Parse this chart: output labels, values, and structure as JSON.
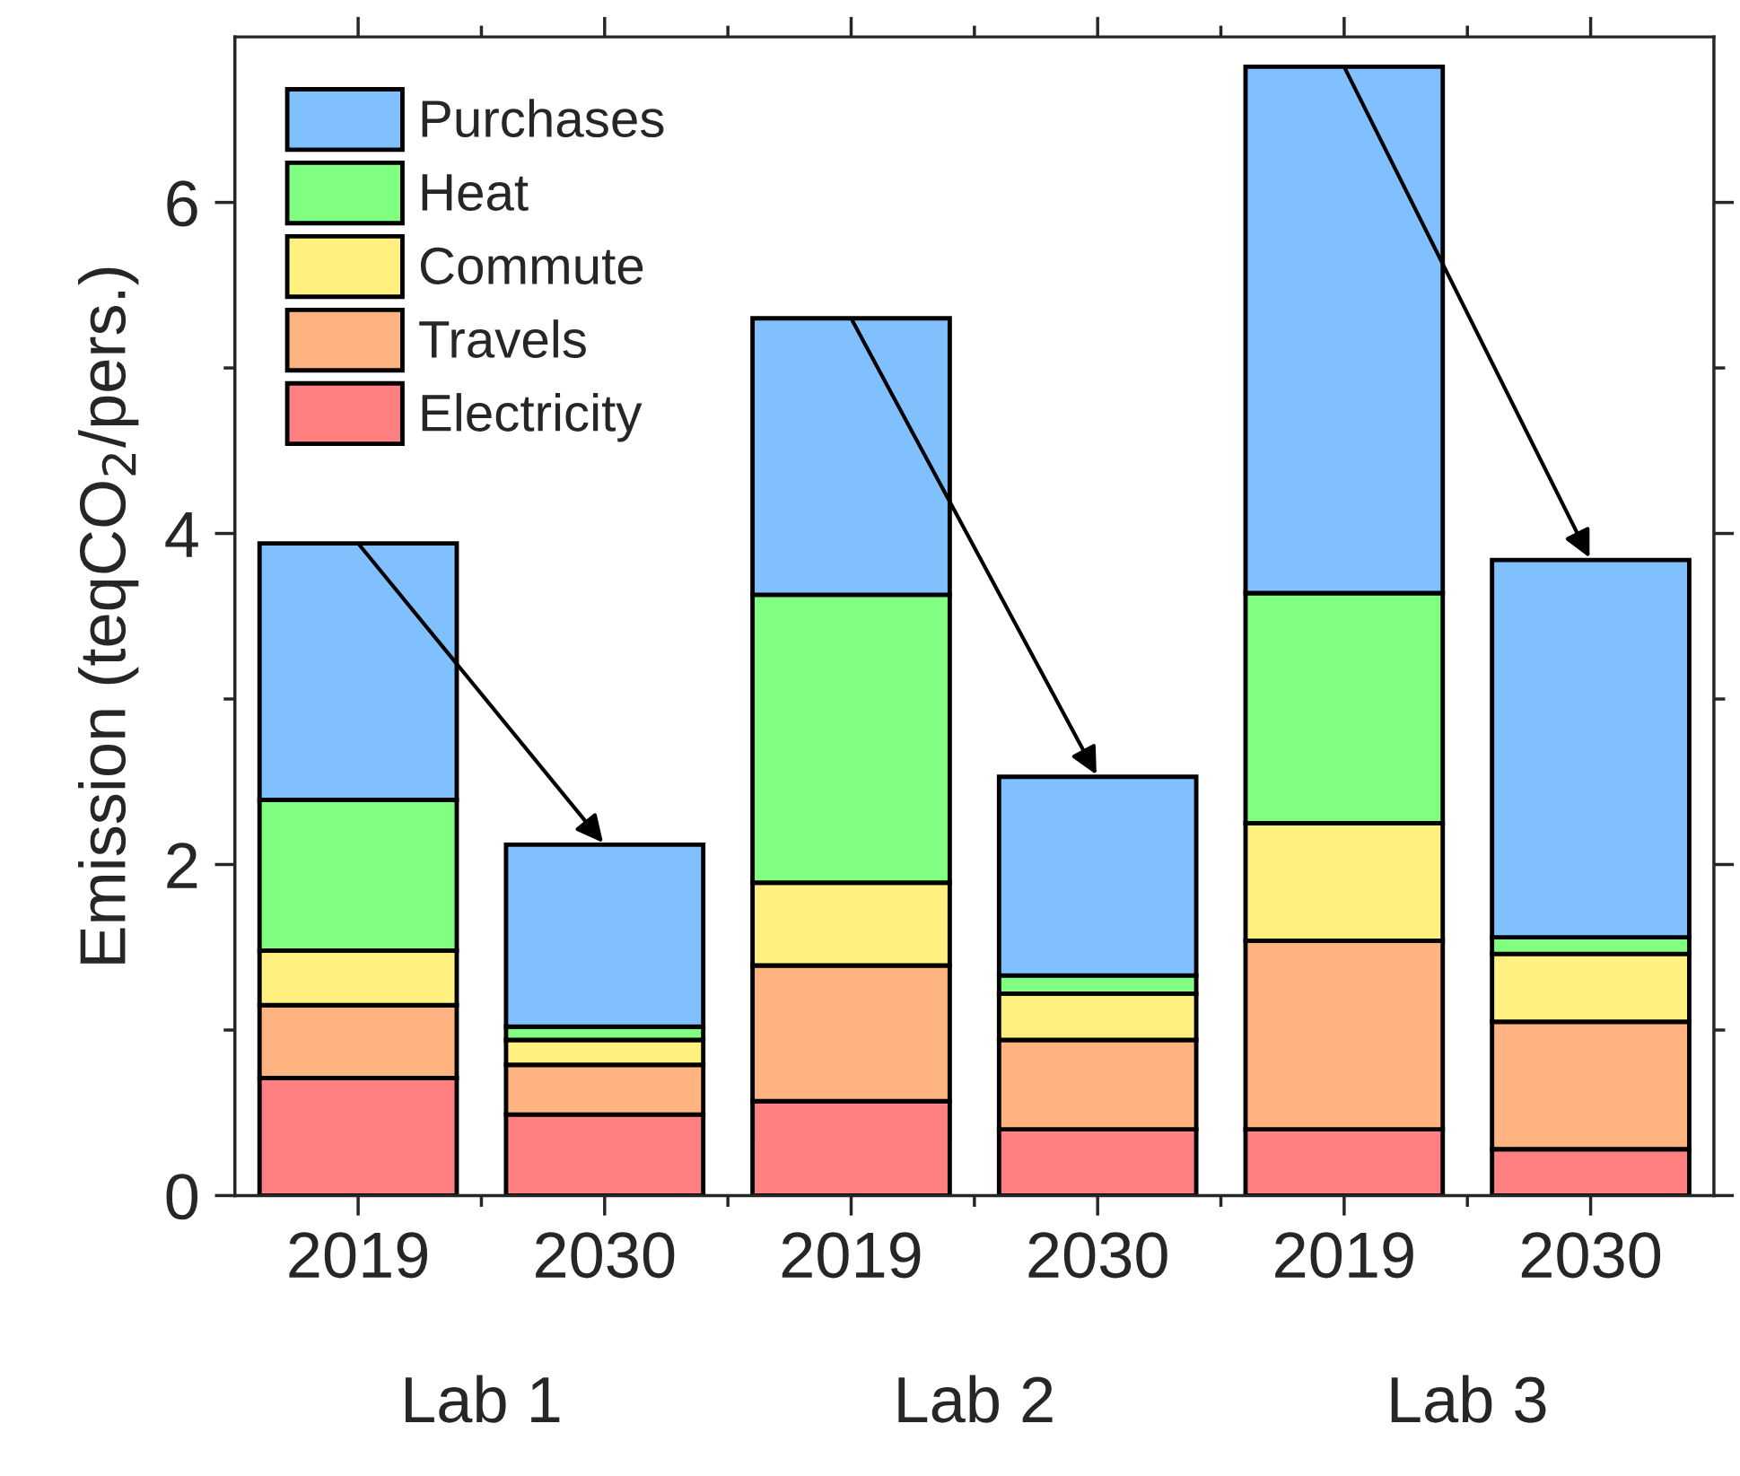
{
  "chart_data": {
    "type": "bar",
    "stacked": true,
    "ylabel": "Emission (teqCO$_{2}$/pers.)",
    "categories": [
      "2019",
      "2030",
      "2019",
      "2030",
      "2019",
      "2030"
    ],
    "series": [
      {
        "name": "Electricity",
        "color": "#ff8080",
        "values": [
          0.71,
          0.49,
          0.57,
          0.4,
          0.4,
          0.28
        ]
      },
      {
        "name": "Travels",
        "color": "#ffb380",
        "values": [
          0.44,
          0.3,
          0.82,
          0.54,
          1.14,
          0.77
        ]
      },
      {
        "name": "Commute",
        "color": "#fff080",
        "values": [
          0.33,
          0.15,
          0.5,
          0.28,
          0.71,
          0.41
        ]
      },
      {
        "name": "Heat",
        "color": "#80ff80",
        "values": [
          0.91,
          0.08,
          1.74,
          0.11,
          1.39,
          0.1
        ]
      },
      {
        "name": "Purchases",
        "color": "#80c0ff",
        "values": [
          1.55,
          1.1,
          1.67,
          1.2,
          3.18,
          2.28
        ]
      }
    ],
    "annotations": [
      "Lab 1",
      "Lab 2",
      "Lab 3"
    ],
    "ylim": [
      0,
      7
    ],
    "yticks": [
      0,
      {
        "value": 1,
        "label": null
      },
      2,
      {
        "value": 3,
        "label": null
      },
      4,
      {
        "value": 5,
        "label": null
      },
      6
    ],
    "legend": "top left",
    "grid": false
  }
}
